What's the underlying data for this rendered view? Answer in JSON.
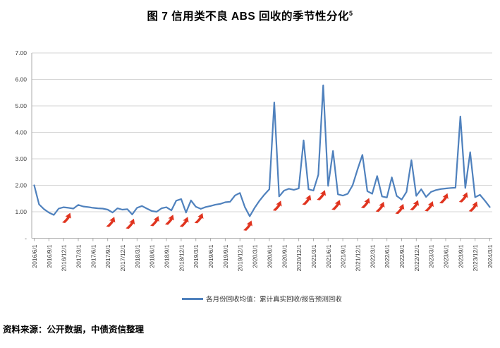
{
  "title": {
    "text": "图 7 信用类不良 ABS 回收的季节性分化",
    "superscript": "5"
  },
  "source_note": "资料来源：公开数据，中债资信整理",
  "chart_data": {
    "type": "line",
    "series_name": "各月份回收均值：累计真实回收/报告预测回收",
    "x_start": "2016/6",
    "x_end": "2024/3",
    "x_frequency": "monthly",
    "y_min": 0,
    "y_max": 7,
    "grid": "horizontal",
    "legend_position": "bottom-center",
    "line_color": "#4F81BD",
    "arrow_color": "#E0341F",
    "grid_color": "#D6D6D6",
    "axis_color": "#ABABAB",
    "tick_text_color": "#3A3A3A",
    "y_tick_labels": [
      "7.00",
      "6.00",
      "5.00",
      "4.00",
      "3.00",
      "2.00",
      "1.00",
      "-"
    ],
    "x_tick_labels": [
      "2016/6/1",
      "2016/9/1",
      "2016/12/1",
      "2017/3/1",
      "2017/6/1",
      "2017/9/1",
      "2017/12/1",
      "2018/3/1",
      "2018/6/1",
      "2018/9/1",
      "2018/12/1",
      "2019/3/1",
      "2019/6/1",
      "2019/9/1",
      "2019/12/1",
      "2020/3/1",
      "2020/6/1",
      "2020/9/1",
      "2020/12/1",
      "2021/3/1",
      "2021/6/1",
      "2021/9/1",
      "2021/12/1",
      "2022/3/1",
      "2022/6/1",
      "2022/9/1",
      "2022/12/1",
      "2023/3/1",
      "2023/6/1",
      "2023/9/1",
      "2023/12/1",
      "2024/3/1"
    ],
    "x_tick_every_n_months": 3,
    "values": [
      2.0,
      1.28,
      1.1,
      0.97,
      0.88,
      1.12,
      1.17,
      1.15,
      1.12,
      1.26,
      1.2,
      1.18,
      1.15,
      1.13,
      1.12,
      1.08,
      0.97,
      1.13,
      1.08,
      1.1,
      0.9,
      1.15,
      1.22,
      1.12,
      1.03,
      1.0,
      1.13,
      1.17,
      1.05,
      1.42,
      1.48,
      0.97,
      1.43,
      1.19,
      1.11,
      1.18,
      1.22,
      1.27,
      1.3,
      1.36,
      1.38,
      1.62,
      1.71,
      1.18,
      0.83,
      1.15,
      1.42,
      1.65,
      1.85,
      5.13,
      1.58,
      1.8,
      1.87,
      1.83,
      1.88,
      3.7,
      1.85,
      1.8,
      2.4,
      5.78,
      1.98,
      3.3,
      1.66,
      1.61,
      1.68,
      2.0,
      2.6,
      3.15,
      1.78,
      1.68,
      2.35,
      1.58,
      1.54,
      2.3,
      1.6,
      1.46,
      1.75,
      2.95,
      1.6,
      1.85,
      1.56,
      1.75,
      1.82,
      1.86,
      1.88,
      1.9,
      1.91,
      4.6,
      1.9,
      3.25,
      1.55,
      1.64,
      1.42,
      1.18
    ],
    "arrow_month_indices": [
      7,
      16,
      20,
      25,
      28,
      31,
      34,
      44,
      50,
      56,
      59,
      62,
      68,
      71,
      75,
      78,
      81,
      84,
      88,
      90
    ],
    "arrow_meaning": "红色箭头标注季节性低点"
  }
}
